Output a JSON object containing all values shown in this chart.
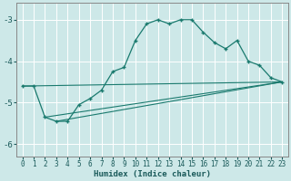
{
  "title": "",
  "xlabel": "Humidex (Indice chaleur)",
  "ylabel": "",
  "background_color": "#cde8e8",
  "grid_color": "#ffffff",
  "line_color": "#1a7a6e",
  "xlim": [
    -0.5,
    23.5
  ],
  "ylim": [
    -6.3,
    -2.6
  ],
  "yticks": [
    -6,
    -5,
    -4,
    -3
  ],
  "xticks": [
    0,
    1,
    2,
    3,
    4,
    5,
    6,
    7,
    8,
    9,
    10,
    11,
    12,
    13,
    14,
    15,
    16,
    17,
    18,
    19,
    20,
    21,
    22,
    23
  ],
  "series": [
    {
      "x": [
        0,
        1,
        2,
        3,
        4,
        5,
        6,
        7,
        8,
        9,
        10,
        11,
        12,
        13,
        14,
        15,
        16,
        17,
        18,
        19,
        20,
        21,
        22,
        23
      ],
      "y": [
        -4.6,
        -4.6,
        -5.35,
        -5.45,
        -5.45,
        -5.05,
        -4.9,
        -4.7,
        -4.25,
        -4.15,
        -3.5,
        -3.1,
        -3.0,
        -3.1,
        -3.0,
        -3.0,
        -3.3,
        -3.55,
        -3.7,
        -3.5,
        -4.0,
        -4.1,
        -4.4,
        -4.5
      ]
    },
    {
      "x": [
        0,
        23
      ],
      "y": [
        -4.6,
        -4.5
      ]
    },
    {
      "x": [
        2,
        23
      ],
      "y": [
        -5.35,
        -4.5
      ]
    },
    {
      "x": [
        3,
        23
      ],
      "y": [
        -5.45,
        -4.5
      ]
    }
  ]
}
